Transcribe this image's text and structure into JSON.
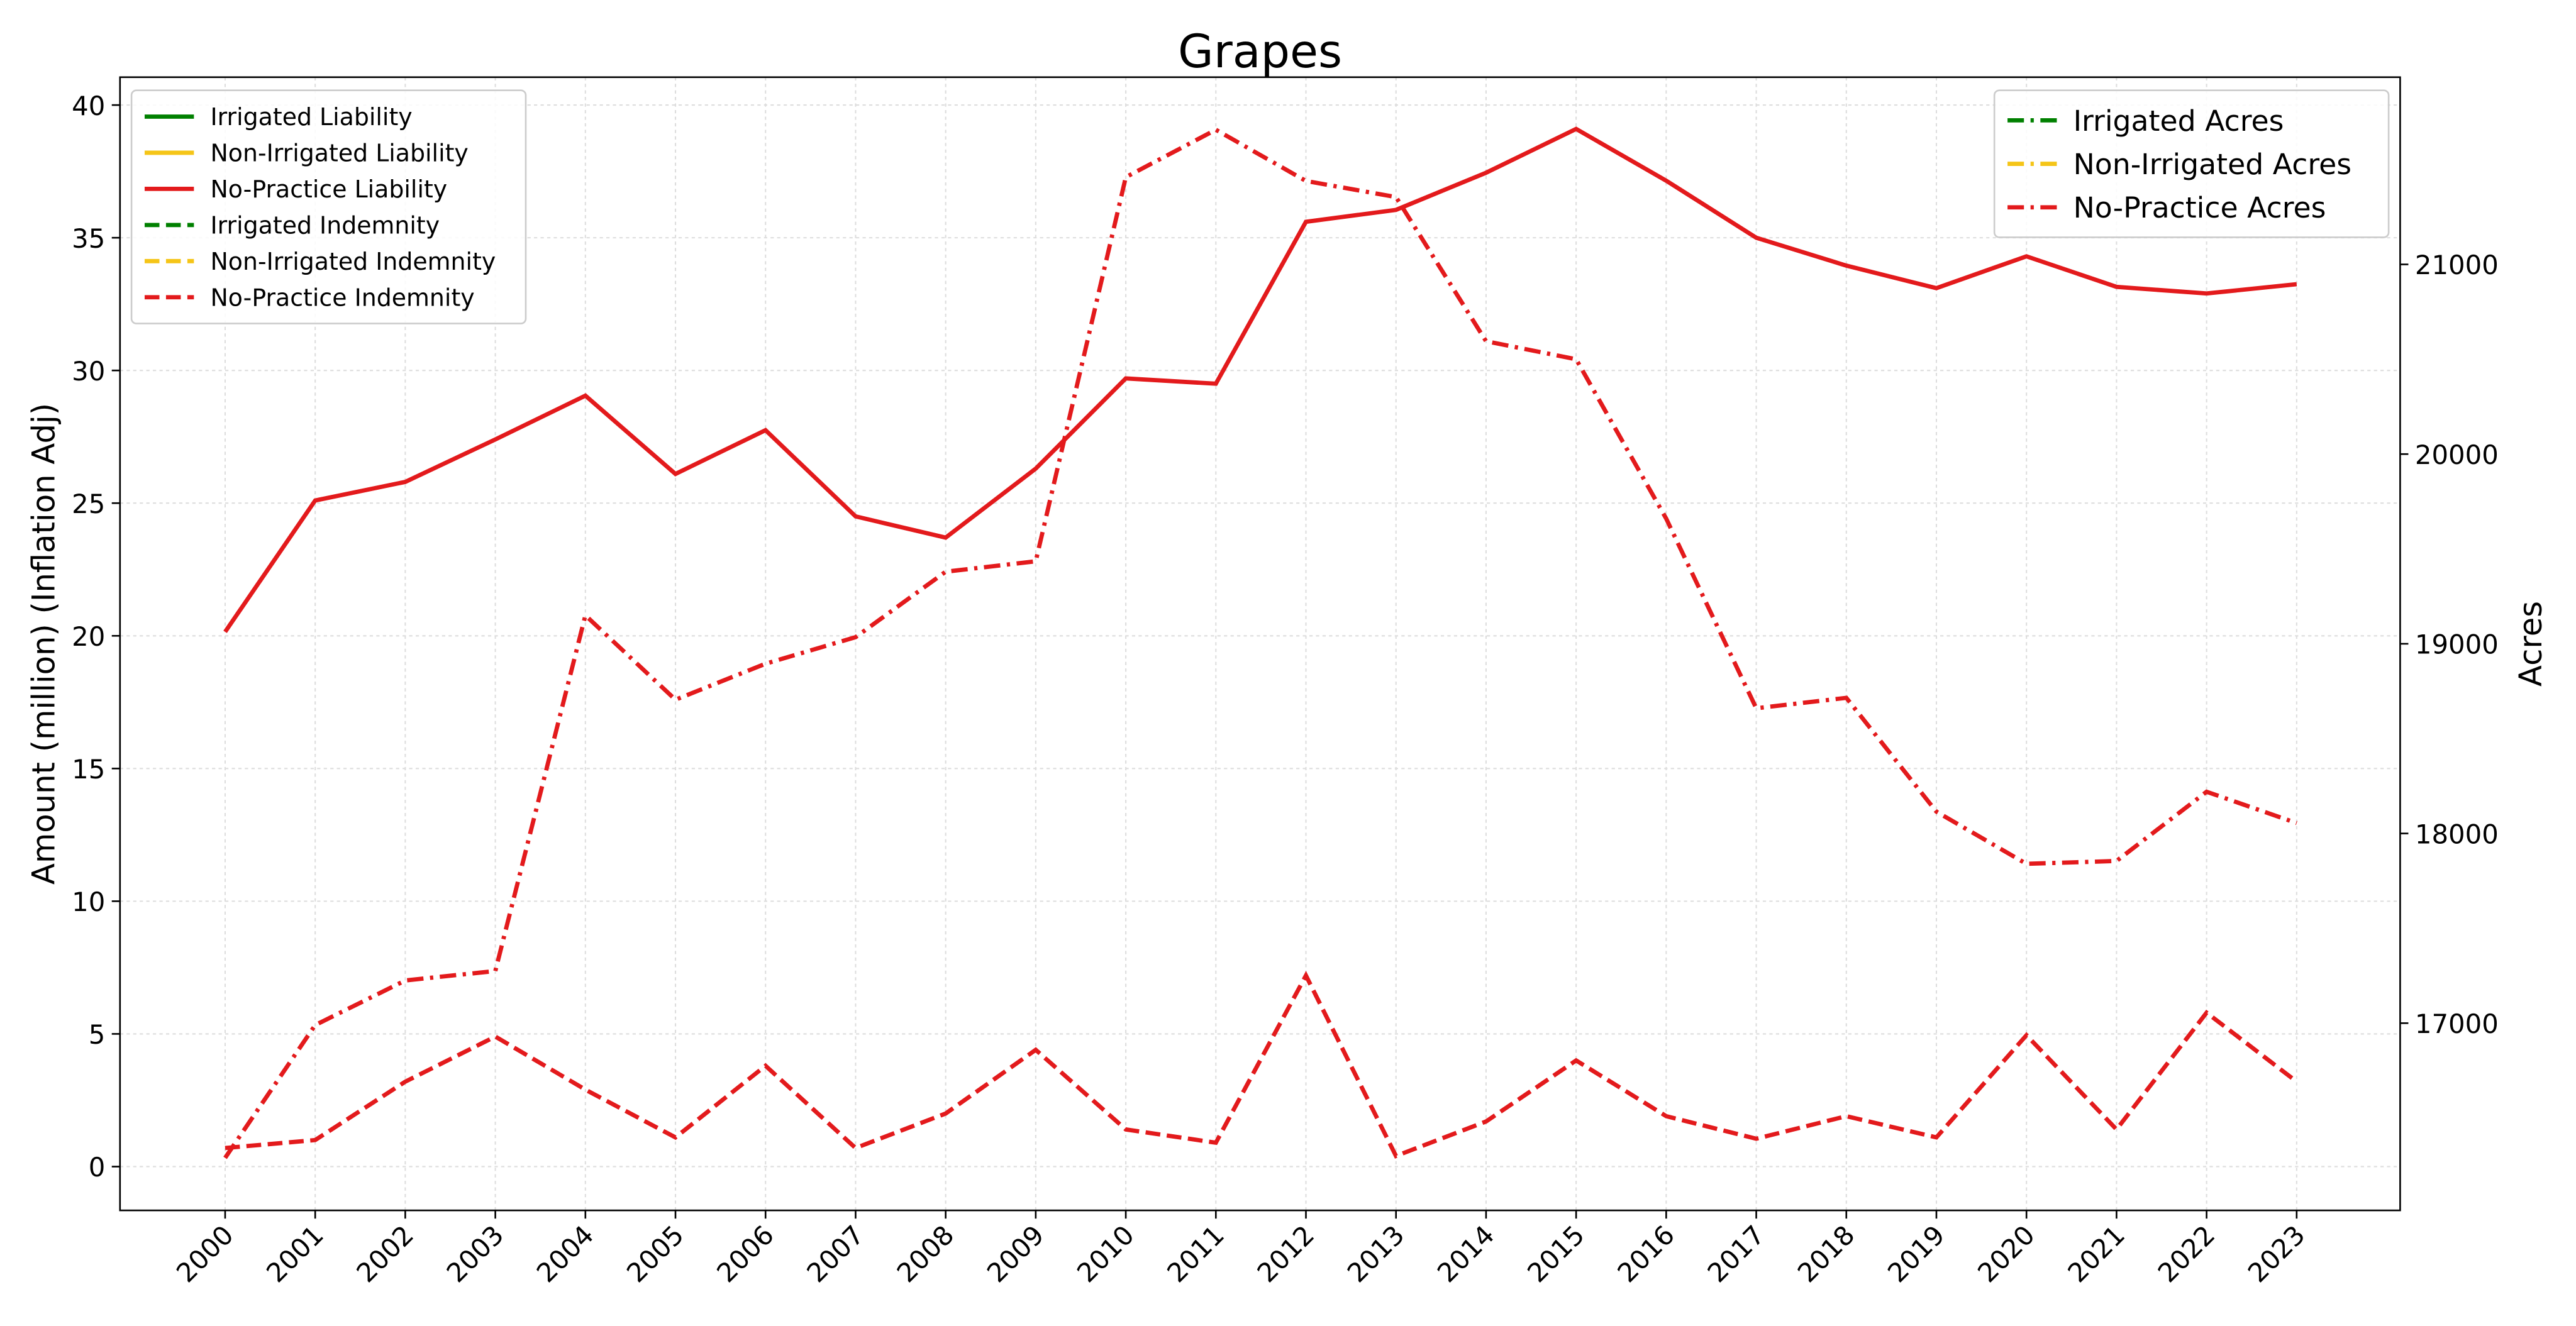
{
  "chart_data": {
    "type": "line",
    "title": "Grapes",
    "ylabel": "Amount (million) (Inflation Adj)",
    "y2label": "Acres",
    "categories": [
      "2000",
      "2001",
      "2002",
      "2003",
      "2004",
      "2005",
      "2006",
      "2007",
      "2008",
      "2009",
      "2010",
      "2011",
      "2012",
      "2013",
      "2014",
      "2015",
      "2016",
      "2017",
      "2018",
      "2019",
      "2020",
      "2021",
      "2022",
      "2023"
    ],
    "ylim": [
      -1.65,
      41.05
    ],
    "yticks": [
      0,
      5,
      10,
      15,
      20,
      25,
      30,
      35,
      40
    ],
    "y2lim": [
      16013,
      21987
    ],
    "y2ticks": [
      17000,
      18000,
      19000,
      20000,
      21000
    ],
    "grid": true,
    "legend_loc": "upper left",
    "legend2_loc": "upper right",
    "series": [
      {
        "name": "Irrigated Liability",
        "color": "#008000",
        "style": "solid",
        "values": [
          null,
          null,
          null,
          null,
          null,
          null,
          null,
          null,
          null,
          null,
          null,
          null,
          null,
          null,
          null,
          null,
          null,
          null,
          null,
          null,
          null,
          null,
          null,
          null
        ]
      },
      {
        "name": "Non-Irrigated Liability",
        "color": "#f5c518",
        "style": "solid",
        "values": [
          null,
          null,
          null,
          null,
          null,
          null,
          null,
          null,
          null,
          null,
          null,
          null,
          null,
          null,
          null,
          null,
          null,
          null,
          null,
          null,
          null,
          null,
          null,
          null
        ]
      },
      {
        "name": "No-Practice Liability",
        "color": "#e31a1c",
        "style": "solid",
        "values": [
          20.15,
          25.1,
          25.8,
          27.4,
          29.05,
          26.1,
          27.75,
          24.5,
          23.7,
          26.3,
          29.7,
          29.5,
          35.6,
          36.05,
          37.45,
          39.1,
          37.15,
          35.0,
          33.95,
          33.1,
          34.3,
          33.15,
          32.9,
          33.25
        ]
      },
      {
        "name": "Irrigated Indemnity",
        "color": "#008000",
        "style": "dashed",
        "values": [
          null,
          null,
          null,
          null,
          null,
          null,
          null,
          null,
          null,
          null,
          null,
          null,
          null,
          null,
          null,
          null,
          null,
          null,
          null,
          null,
          null,
          null,
          null,
          null
        ]
      },
      {
        "name": "Non-Irrigated Indemnity",
        "color": "#f5c518",
        "style": "dashed",
        "values": [
          null,
          null,
          null,
          null,
          null,
          null,
          null,
          null,
          null,
          null,
          null,
          null,
          null,
          null,
          null,
          null,
          null,
          null,
          null,
          null,
          null,
          null,
          null,
          null
        ]
      },
      {
        "name": "No-Practice Indemnity",
        "color": "#e31a1c",
        "style": "dashed",
        "values": [
          0.7,
          1.0,
          3.2,
          4.9,
          2.9,
          1.1,
          3.8,
          0.7,
          2.0,
          4.4,
          1.4,
          0.9,
          7.2,
          0.4,
          1.7,
          4.0,
          1.9,
          1.05,
          1.9,
          1.1,
          4.95,
          1.4,
          5.8,
          3.2
        ]
      },
      {
        "name": "Irrigated Acres",
        "color": "#008000",
        "style": "dashdot",
        "axis": "y2",
        "values": [
          null,
          null,
          null,
          null,
          null,
          null,
          null,
          null,
          null,
          null,
          null,
          null,
          null,
          null,
          null,
          null,
          null,
          null,
          null,
          null,
          null,
          null,
          null,
          null
        ]
      },
      {
        "name": "Non-Irrigated Acres",
        "color": "#f5c518",
        "style": "dashdot",
        "axis": "y2",
        "values": [
          null,
          null,
          null,
          null,
          null,
          null,
          null,
          null,
          null,
          null,
          null,
          null,
          null,
          null,
          null,
          null,
          null,
          null,
          null,
          null,
          null,
          null,
          null,
          null
        ]
      },
      {
        "name": "No-Practice Acres",
        "color": "#e31a1c",
        "style": "dashdot",
        "axis": "y2",
        "values": [
          16290,
          16990,
          17225,
          17275,
          19150,
          18705,
          18895,
          19035,
          19380,
          19435,
          21460,
          21710,
          21440,
          21355,
          20595,
          20500,
          19660,
          18660,
          18715,
          18115,
          17840,
          17855,
          18220,
          18055
        ]
      }
    ]
  }
}
